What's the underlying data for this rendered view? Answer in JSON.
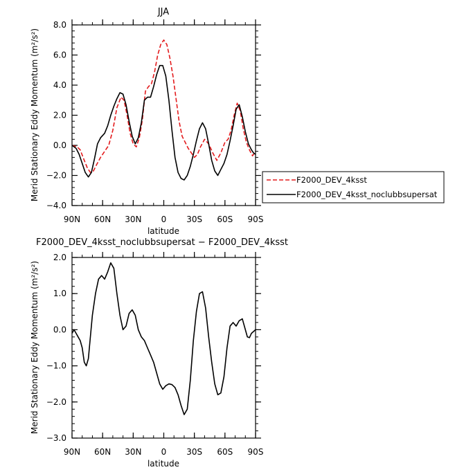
{
  "chart_data": [
    {
      "type": "line",
      "title": "JJA",
      "xlabel": "latitude",
      "ylabel": "Merid Stationary Eddy Momentum  (m²/s²)",
      "xlim": [
        90,
        -90
      ],
      "ylim": [
        -4,
        8
      ],
      "x_ticks": [
        90,
        60,
        30,
        0,
        -30,
        -60,
        -90
      ],
      "x_tick_labels": [
        "90N",
        "60N",
        "30N",
        "0",
        "30S",
        "60S",
        "90S"
      ],
      "y_ticks": [
        -4,
        -2,
        0,
        2,
        4,
        6,
        8
      ],
      "y_tick_labels": [
        "−4.0",
        "−2.0",
        "0.0",
        "2.0",
        "4.0",
        "6.0",
        "8.0"
      ],
      "legend_position": "right",
      "series": [
        {
          "name": "F2000_DEV_4ksst",
          "color": "#e31a1c",
          "dash": "dashed",
          "x": [
            90,
            85,
            82,
            78,
            75,
            72,
            69,
            66,
            62,
            58,
            54,
            50,
            46,
            42,
            39,
            36,
            33,
            30,
            27,
            24,
            21,
            18,
            15,
            12,
            9,
            6,
            3,
            0,
            -3,
            -6,
            -9,
            -12,
            -15,
            -18,
            -21,
            -24,
            -27,
            -30,
            -33,
            -36,
            -40,
            -44,
            -48,
            -52,
            -56,
            -60,
            -63,
            -66,
            -69,
            -72,
            -75,
            -78,
            -81,
            -84,
            -87,
            -90
          ],
          "y": [
            0.0,
            -0.1,
            -0.3,
            -1.0,
            -1.5,
            -1.8,
            -1.7,
            -1.3,
            -0.8,
            -0.4,
            0.0,
            1.0,
            2.5,
            3.2,
            3.0,
            2.0,
            0.8,
            0.1,
            -0.1,
            0.5,
            1.7,
            3.6,
            3.9,
            4.1,
            4.9,
            6.0,
            6.7,
            7.0,
            6.7,
            5.8,
            4.6,
            3.1,
            1.6,
            0.6,
            0.2,
            -0.2,
            -0.5,
            -0.8,
            -0.6,
            -0.1,
            0.4,
            0.1,
            -0.5,
            -1.0,
            -0.5,
            0.2,
            0.4,
            1.0,
            2.0,
            2.8,
            2.3,
            1.1,
            0.2,
            -0.3,
            -0.7,
            -0.4
          ]
        },
        {
          "name": "F2000_DEV_4ksst_noclubbsupersat",
          "color": "#000000",
          "dash": "solid",
          "x": [
            90,
            86,
            83,
            80,
            77,
            74,
            71,
            68,
            65,
            62,
            58,
            55,
            52,
            49,
            46,
            43,
            40,
            37,
            34,
            31,
            28,
            25,
            22,
            19,
            16,
            13,
            10,
            7,
            4,
            1,
            -2,
            -5,
            -8,
            -11,
            -14,
            -17,
            -20,
            -23,
            -26,
            -29,
            -32,
            -35,
            -38,
            -41,
            -44,
            -47,
            -50,
            -53,
            -56,
            -59,
            -62,
            -65,
            -68,
            -71,
            -74,
            -77,
            -80,
            -83,
            -86,
            -88,
            -90
          ],
          "y": [
            0.0,
            -0.2,
            -0.6,
            -1.2,
            -1.8,
            -2.1,
            -1.8,
            -0.9,
            0.1,
            0.5,
            0.8,
            1.3,
            2.0,
            2.6,
            3.1,
            3.5,
            3.4,
            2.7,
            1.6,
            0.6,
            0.1,
            0.5,
            1.5,
            3.0,
            3.2,
            3.2,
            3.9,
            4.7,
            5.3,
            5.3,
            4.6,
            3.0,
            1.0,
            -0.8,
            -1.8,
            -2.2,
            -2.3,
            -2.0,
            -1.4,
            -0.6,
            0.3,
            1.1,
            1.5,
            1.1,
            0.1,
            -1.0,
            -1.7,
            -2.0,
            -1.6,
            -1.2,
            -0.6,
            0.3,
            1.3,
            2.4,
            2.7,
            1.9,
            0.9,
            0.1,
            -0.3,
            -0.5,
            -0.6
          ]
        }
      ]
    },
    {
      "type": "line",
      "title": "F2000_DEV_4ksst_noclubbsupersat − F2000_DEV_4ksst",
      "xlabel": "latitude",
      "ylabel": "Merid Stationary Eddy Momentum  (m²/s²)",
      "xlim": [
        90,
        -90
      ],
      "ylim": [
        -3,
        2
      ],
      "x_ticks": [
        90,
        60,
        30,
        0,
        -30,
        -60,
        -90
      ],
      "x_tick_labels": [
        "90N",
        "60N",
        "30N",
        "0",
        "30S",
        "60S",
        "90S"
      ],
      "y_ticks": [
        -3,
        -2,
        -1,
        0,
        1,
        2
      ],
      "y_tick_labels": [
        "−3.0",
        "−2.0",
        "−1.0",
        "0.0",
        "1.0",
        "2.0"
      ],
      "series": [
        {
          "color": "#000000",
          "dash": "solid",
          "x": [
            90,
            88,
            86,
            84,
            82,
            80,
            78,
            76,
            74,
            72,
            70,
            67,
            64,
            61,
            58,
            55,
            52,
            49,
            46,
            43,
            40,
            37,
            34,
            31,
            28,
            25,
            22,
            19,
            16,
            13,
            10,
            7,
            4,
            1,
            -2,
            -5,
            -8,
            -11,
            -14,
            -17,
            -20,
            -23,
            -26,
            -29,
            -32,
            -35,
            -38,
            -41,
            -44,
            -47,
            -50,
            -53,
            -56,
            -59,
            -62,
            -65,
            -68,
            -71,
            -74,
            -77,
            -80,
            -82,
            -84,
            -86,
            -88,
            -90
          ],
          "y": [
            -0.1,
            0.0,
            -0.1,
            -0.2,
            -0.3,
            -0.5,
            -0.9,
            -1.0,
            -0.8,
            -0.2,
            0.4,
            1.0,
            1.4,
            1.5,
            1.4,
            1.6,
            1.85,
            1.7,
            1.0,
            0.4,
            0.0,
            0.1,
            0.45,
            0.55,
            0.4,
            0.0,
            -0.2,
            -0.3,
            -0.5,
            -0.7,
            -0.9,
            -1.2,
            -1.5,
            -1.65,
            -1.55,
            -1.5,
            -1.52,
            -1.6,
            -1.8,
            -2.1,
            -2.35,
            -2.2,
            -1.4,
            -0.3,
            0.5,
            1.0,
            1.05,
            0.6,
            -0.2,
            -0.9,
            -1.5,
            -1.8,
            -1.75,
            -1.3,
            -0.5,
            0.1,
            0.2,
            0.1,
            0.25,
            0.3,
            0.0,
            -0.2,
            -0.22,
            -0.1,
            -0.05,
            0.0
          ]
        }
      ]
    }
  ]
}
